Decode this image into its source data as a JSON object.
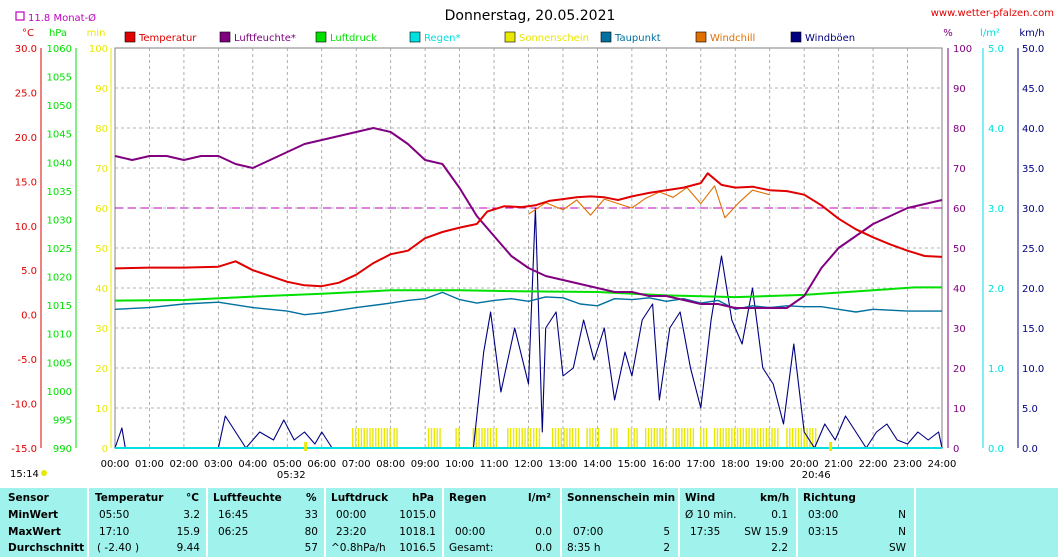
{
  "header": {
    "title": "Donnerstag, 20.05.2021",
    "site": "www.wetter-pfalzen.com",
    "month_avg": "11.8 Monat-Ø",
    "sunrise_marker_time": "15:14"
  },
  "colors": {
    "temperature": "#e00000",
    "humidity": "#800080",
    "pressure": "#00e000",
    "rain": "#00e0e0",
    "sunshine": "#e8e800",
    "dewpoint": "#0070a0",
    "windchill": "#e07000",
    "gusts": "#000080",
    "month_line": "#c000c0"
  },
  "chart_data": {
    "type": "line",
    "title": "Donnerstag, 20.05.2021",
    "x_ticks": [
      "00:00",
      "01:00",
      "02:00",
      "03:00",
      "04:00",
      "05:00",
      "06:00",
      "07:00",
      "08:00",
      "09:00",
      "10:00",
      "11:00",
      "12:00",
      "13:00",
      "14:00",
      "15:00",
      "16:00",
      "17:00",
      "18:00",
      "19:00",
      "20:00",
      "21:00",
      "22:00",
      "23:00",
      "24:00"
    ],
    "sunrise": "05:32",
    "sunset": "20:46",
    "axes": {
      "temperature": {
        "unit": "°C",
        "range": [
          -15,
          30
        ],
        "ticks": [
          "30.0",
          "25.0",
          "20.0",
          "15.0",
          "10.0",
          "5.0",
          "0.0",
          "-5.0",
          "-10.0",
          "-15.0"
        ]
      },
      "pressure": {
        "unit": "hPa",
        "range": [
          990,
          1060
        ],
        "ticks": [
          "1060",
          "1055",
          "1050",
          "1045",
          "1040",
          "1035",
          "1030",
          "1025",
          "1020",
          "1015",
          "1010",
          "1005",
          "1000",
          "995",
          "990"
        ]
      },
      "minutes": {
        "unit": "min",
        "range": [
          0,
          100
        ],
        "ticks": [
          "100",
          "90",
          "80",
          "70",
          "60",
          "50",
          "40",
          "30",
          "20",
          "10",
          "0"
        ]
      },
      "humidity": {
        "unit": "%",
        "range": [
          0,
          100
        ],
        "ticks": [
          "100",
          "90",
          "80",
          "70",
          "60",
          "50",
          "40",
          "30",
          "20",
          "10",
          "0"
        ]
      },
      "rain": {
        "unit": "l/m²",
        "range": [
          0,
          5
        ],
        "ticks": [
          "5.0",
          "4.0",
          "3.0",
          "2.0",
          "1.0",
          "0.0"
        ]
      },
      "wind": {
        "unit": "km/h",
        "range": [
          0,
          50
        ],
        "ticks": [
          "50.0",
          "45.0",
          "40.0",
          "35.0",
          "30.0",
          "25.0",
          "20.0",
          "15.0",
          "10.0",
          "5.0",
          "0.0"
        ]
      }
    },
    "legend": [
      "Temperatur",
      "Luftfeuchte*",
      "Luftdruck",
      "Regen*",
      "Sonnenschein",
      "Taupunkt",
      "Windchill",
      "Windböen"
    ],
    "month_average_humidity": 60,
    "series": [
      {
        "name": "Temperatur",
        "axis": "temperature",
        "points": [
          [
            0,
            5.2
          ],
          [
            1,
            5.3
          ],
          [
            2,
            5.3
          ],
          [
            3,
            5.4
          ],
          [
            3.5,
            6.0
          ],
          [
            4,
            5.0
          ],
          [
            5,
            3.7
          ],
          [
            5.5,
            3.3
          ],
          [
            6,
            3.2
          ],
          [
            6.5,
            3.6
          ],
          [
            7,
            4.5
          ],
          [
            7.5,
            5.8
          ],
          [
            8,
            6.8
          ],
          [
            8.5,
            7.2
          ],
          [
            9,
            8.6
          ],
          [
            9.5,
            9.3
          ],
          [
            10,
            9.8
          ],
          [
            10.5,
            10.2
          ],
          [
            10.8,
            11.6
          ],
          [
            11.3,
            12.2
          ],
          [
            11.8,
            12.1
          ],
          [
            12.2,
            12.3
          ],
          [
            12.6,
            12.8
          ],
          [
            13,
            13.0
          ],
          [
            13.4,
            13.2
          ],
          [
            13.8,
            13.3
          ],
          [
            14.2,
            13.2
          ],
          [
            14.6,
            12.9
          ],
          [
            15,
            13.3
          ],
          [
            15.5,
            13.7
          ],
          [
            16,
            14.0
          ],
          [
            16.5,
            14.3
          ],
          [
            17,
            14.8
          ],
          [
            17.2,
            15.9
          ],
          [
            17.6,
            14.6
          ],
          [
            18,
            14.3
          ],
          [
            18.5,
            14.4
          ],
          [
            19,
            14.0
          ],
          [
            19.5,
            13.9
          ],
          [
            20,
            13.5
          ],
          [
            20.5,
            12.3
          ],
          [
            21,
            10.8
          ],
          [
            21.5,
            9.6
          ],
          [
            22,
            8.7
          ],
          [
            22.5,
            7.9
          ],
          [
            23,
            7.2
          ],
          [
            23.5,
            6.6
          ],
          [
            24,
            6.5
          ]
        ]
      },
      {
        "name": "Luftfeuchte*",
        "axis": "humidity",
        "points": [
          [
            0,
            73
          ],
          [
            0.5,
            72
          ],
          [
            1,
            73
          ],
          [
            1.5,
            73
          ],
          [
            2,
            72
          ],
          [
            2.5,
            73
          ],
          [
            3,
            73
          ],
          [
            3.5,
            71
          ],
          [
            4,
            70
          ],
          [
            4.5,
            72
          ],
          [
            5,
            74
          ],
          [
            5.5,
            76
          ],
          [
            6,
            77
          ],
          [
            6.5,
            78
          ],
          [
            7,
            79
          ],
          [
            7.5,
            80
          ],
          [
            8,
            79
          ],
          [
            8.5,
            76
          ],
          [
            9,
            72
          ],
          [
            9.5,
            71
          ],
          [
            10,
            65
          ],
          [
            10.5,
            58
          ],
          [
            11,
            53
          ],
          [
            11.5,
            48
          ],
          [
            12,
            45
          ],
          [
            12.5,
            43
          ],
          [
            13,
            42
          ],
          [
            13.5,
            41
          ],
          [
            14,
            40
          ],
          [
            14.5,
            39
          ],
          [
            15,
            39
          ],
          [
            15.5,
            38
          ],
          [
            16,
            38
          ],
          [
            16.5,
            37
          ],
          [
            17,
            36
          ],
          [
            17.5,
            36
          ],
          [
            18,
            35
          ],
          [
            18.5,
            35
          ],
          [
            19,
            35
          ],
          [
            19.5,
            35
          ],
          [
            20,
            38
          ],
          [
            20.5,
            45
          ],
          [
            21,
            50
          ],
          [
            21.5,
            53
          ],
          [
            22,
            56
          ],
          [
            22.5,
            58
          ],
          [
            23,
            60
          ],
          [
            23.5,
            61
          ],
          [
            24,
            62
          ]
        ]
      },
      {
        "name": "Luftdruck",
        "axis": "pressure",
        "points": [
          [
            0,
            1015.8
          ],
          [
            2,
            1015.9
          ],
          [
            4,
            1016.5
          ],
          [
            6,
            1017.0
          ],
          [
            8,
            1017.6
          ],
          [
            10,
            1017.6
          ],
          [
            12,
            1017.4
          ],
          [
            14,
            1017.3
          ],
          [
            16,
            1016.7
          ],
          [
            18,
            1016.4
          ],
          [
            20,
            1016.8
          ],
          [
            22,
            1017.6
          ],
          [
            23.2,
            1018.1
          ],
          [
            24,
            1018.1
          ]
        ]
      },
      {
        "name": "Taupunkt",
        "axis": "temperature",
        "points": [
          [
            0,
            0.6
          ],
          [
            1,
            0.8
          ],
          [
            2,
            1.2
          ],
          [
            3,
            1.4
          ],
          [
            4,
            0.8
          ],
          [
            5,
            0.4
          ],
          [
            5.5,
            0.0
          ],
          [
            6,
            0.2
          ],
          [
            7,
            0.8
          ],
          [
            8,
            1.3
          ],
          [
            8.5,
            1.6
          ],
          [
            9,
            1.8
          ],
          [
            9.5,
            2.5
          ],
          [
            10,
            1.7
          ],
          [
            10.5,
            1.3
          ],
          [
            11,
            1.6
          ],
          [
            11.5,
            1.8
          ],
          [
            12,
            1.5
          ],
          [
            12.5,
            2.0
          ],
          [
            13,
            1.9
          ],
          [
            13.5,
            1.2
          ],
          [
            14,
            1.0
          ],
          [
            14.5,
            1.8
          ],
          [
            15,
            1.7
          ],
          [
            15.5,
            1.9
          ],
          [
            16,
            1.5
          ],
          [
            16.5,
            1.8
          ],
          [
            17,
            1.3
          ],
          [
            17.5,
            1.6
          ],
          [
            18,
            0.6
          ],
          [
            18.5,
            1.0
          ],
          [
            19,
            0.8
          ],
          [
            19.5,
            1.0
          ],
          [
            20,
            0.9
          ],
          [
            20.5,
            0.9
          ],
          [
            21,
            0.6
          ],
          [
            21.5,
            0.3
          ],
          [
            22,
            0.6
          ],
          [
            22.5,
            0.5
          ],
          [
            23,
            0.4
          ],
          [
            24,
            0.4
          ]
        ]
      },
      {
        "name": "Windchill",
        "axis": "temperature",
        "points": [
          [
            12.0,
            11.3
          ],
          [
            12.5,
            12.6
          ],
          [
            13.0,
            11.8
          ],
          [
            13.4,
            12.9
          ],
          [
            13.8,
            11.2
          ],
          [
            14.2,
            13.0
          ],
          [
            14.6,
            12.5
          ],
          [
            15.0,
            12.0
          ],
          [
            15.4,
            13.1
          ],
          [
            15.8,
            13.8
          ],
          [
            16.2,
            13.2
          ],
          [
            16.6,
            14.3
          ],
          [
            17.0,
            12.5
          ],
          [
            17.4,
            14.5
          ],
          [
            17.7,
            10.9
          ],
          [
            18.1,
            12.6
          ],
          [
            18.5,
            14.0
          ],
          [
            19.0,
            13.5
          ]
        ]
      },
      {
        "name": "Windböen",
        "axis": "wind",
        "points": [
          [
            0,
            0
          ],
          [
            0.2,
            2.5
          ],
          [
            0.3,
            0
          ],
          [
            3.0,
            0
          ],
          [
            3.2,
            4
          ],
          [
            3.5,
            2
          ],
          [
            3.8,
            0
          ],
          [
            4.2,
            2
          ],
          [
            4.6,
            1
          ],
          [
            4.9,
            3.5
          ],
          [
            5.2,
            1
          ],
          [
            5.5,
            2
          ],
          [
            5.8,
            0.5
          ],
          [
            6.0,
            2
          ],
          [
            6.3,
            0
          ],
          [
            10.4,
            0
          ],
          [
            10.7,
            12
          ],
          [
            10.9,
            17
          ],
          [
            11.2,
            7
          ],
          [
            11.6,
            15
          ],
          [
            12.0,
            8
          ],
          [
            12.2,
            30
          ],
          [
            12.4,
            2
          ],
          [
            12.5,
            15
          ],
          [
            12.8,
            17
          ],
          [
            13.0,
            9
          ],
          [
            13.3,
            10
          ],
          [
            13.6,
            16
          ],
          [
            13.9,
            11
          ],
          [
            14.2,
            15
          ],
          [
            14.5,
            6
          ],
          [
            14.8,
            12
          ],
          [
            15.0,
            9
          ],
          [
            15.3,
            16
          ],
          [
            15.6,
            18
          ],
          [
            15.8,
            6
          ],
          [
            16.1,
            15
          ],
          [
            16.4,
            17
          ],
          [
            16.7,
            10
          ],
          [
            17.0,
            5
          ],
          [
            17.3,
            16
          ],
          [
            17.6,
            24
          ],
          [
            17.9,
            16
          ],
          [
            18.2,
            13
          ],
          [
            18.5,
            20
          ],
          [
            18.8,
            10
          ],
          [
            19.1,
            8
          ],
          [
            19.4,
            3
          ],
          [
            19.7,
            13
          ],
          [
            20.0,
            2
          ],
          [
            20.3,
            0
          ],
          [
            20.6,
            3
          ],
          [
            20.9,
            1
          ],
          [
            21.2,
            4
          ],
          [
            21.5,
            2
          ],
          [
            21.8,
            0
          ],
          [
            22.1,
            2
          ],
          [
            22.4,
            3
          ],
          [
            22.7,
            1
          ],
          [
            23.0,
            0.5
          ],
          [
            23.3,
            2
          ],
          [
            23.6,
            1
          ],
          [
            23.9,
            2
          ],
          [
            24,
            0
          ]
        ]
      }
    ],
    "sunshine_intervals": [
      [
        6.9,
        8.0
      ],
      [
        8.1,
        8.2
      ],
      [
        9.1,
        9.5
      ],
      [
        9.9,
        10.0
      ],
      [
        10.4,
        11.1
      ],
      [
        11.4,
        12.4
      ],
      [
        12.7,
        13.5
      ],
      [
        13.7,
        14.1
      ],
      [
        14.4,
        14.6
      ],
      [
        14.9,
        15.2
      ],
      [
        15.4,
        16.0
      ],
      [
        16.2,
        16.8
      ],
      [
        17.0,
        17.2
      ],
      [
        17.4,
        19.3
      ],
      [
        19.5,
        20.4
      ]
    ]
  },
  "stats": {
    "labels": {
      "sensor": "Sensor",
      "min": "MinWert",
      "max": "MaxWert",
      "avg": "Durchschnitt"
    },
    "temp": {
      "title": "Temperatur",
      "unit": "°C",
      "min_time": "05:50",
      "min": "3.2",
      "max_time": "17:10",
      "max": "15.9",
      "avg_note": "( -2.40 )",
      "avg": "9.44"
    },
    "hum": {
      "title": "Luftfeuchte",
      "unit": "%",
      "min_time": "16:45",
      "min": "33",
      "max_time": "06:25",
      "max": "80",
      "avg": "57"
    },
    "press": {
      "title": "Luftdruck",
      "unit": "hPa",
      "min_time": "00:00",
      "min": "1015.0",
      "max_time": "23:20",
      "max": "1018.1",
      "avg_note": "^0.8hPa/h",
      "avg": "1016.5"
    },
    "rain": {
      "title": "Regen",
      "unit": "l/m²",
      "max_time": "00:00",
      "max": "0.0",
      "avg_label": "Gesamt:",
      "avg": "0.0"
    },
    "sun": {
      "title": "Sonnenschein min",
      "max_time": "07:00",
      "max": "5",
      "avg_hours": "8:35 h",
      "avg": "2"
    },
    "wind": {
      "title": "Wind",
      "unit": "km/h",
      "min_label": "Ø 10 min.",
      "min": "0.1",
      "max_time": "17:35",
      "max": "SW 15.9",
      "avg": "2.2"
    },
    "dir": {
      "title": "Richtung",
      "min_time": "03:00",
      "min": "N",
      "max_time": "03:15",
      "max": "N",
      "avg": "SW"
    }
  }
}
